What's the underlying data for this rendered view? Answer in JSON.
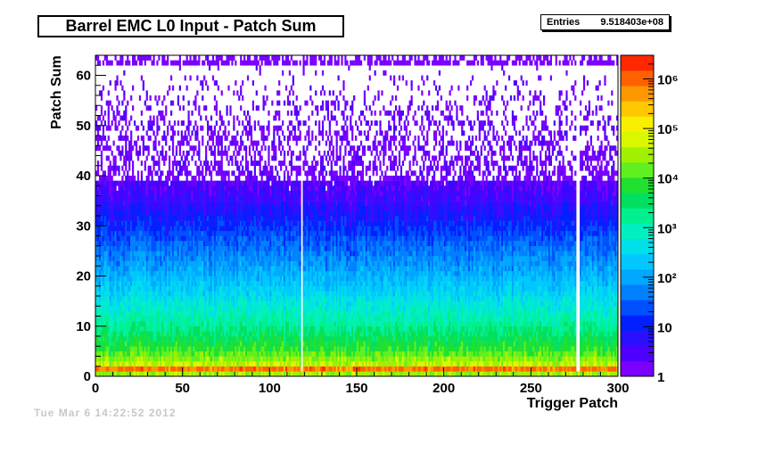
{
  "chart_data": {
    "type": "heatmap",
    "title": "Barrel EMC L0 Input - Patch Sum",
    "xlabel": "Trigger Patch",
    "ylabel": "Patch Sum",
    "xlim": [
      0,
      300
    ],
    "ylim": [
      0,
      64
    ],
    "x_ticks": [
      "0",
      "50",
      "100",
      "150",
      "200",
      "250",
      "300"
    ],
    "y_ticks": [
      "0",
      "10",
      "20",
      "30",
      "40",
      "50",
      "60"
    ],
    "x_bins": 300,
    "y_bins": 64,
    "z_scale": "log",
    "z_range": [
      1,
      3000000
    ],
    "z_ticks": [
      {
        "value": 1,
        "label": "1"
      },
      {
        "value": 10,
        "label": "10"
      },
      {
        "value": 100,
        "label": "10²"
      },
      {
        "value": 1000,
        "label": "10³"
      },
      {
        "value": 10000,
        "label": "10⁴"
      },
      {
        "value": 100000,
        "label": "10⁵"
      },
      {
        "value": 1000000,
        "label": "10⁶"
      }
    ],
    "stats": {
      "label": "Entries",
      "value": "9.518403e+08"
    },
    "empty_columns": [
      118,
      276,
      277
    ],
    "hot_columns": [
      118,
      148
    ],
    "density_profile": [
      {
        "y": 0,
        "count": 30000
      },
      {
        "y": 1,
        "count": 800000
      },
      {
        "y": 2,
        "count": 40000
      },
      {
        "y": 5,
        "count": 8000
      },
      {
        "y": 10,
        "count": 1500
      },
      {
        "y": 15,
        "count": 400
      },
      {
        "y": 20,
        "count": 120
      },
      {
        "y": 25,
        "count": 40
      },
      {
        "y": 30,
        "count": 12
      },
      {
        "y": 35,
        "count": 4
      },
      {
        "y": 40,
        "count": 1.8
      },
      {
        "y": 45,
        "count": 1.1
      },
      {
        "y": 62,
        "count": 1.0
      }
    ],
    "palette": [
      "#7a00ff",
      "#4d00ff",
      "#2a10ff",
      "#0020ff",
      "#0050ff",
      "#0080ff",
      "#00a8ff",
      "#00c8ff",
      "#00e0e8",
      "#00f0c0",
      "#00f090",
      "#00e060",
      "#20e030",
      "#60f020",
      "#a0f000",
      "#d8f800",
      "#f8f000",
      "#ffc800",
      "#ff9800",
      "#ff6000",
      "#ff2800"
    ]
  },
  "footer": {
    "text": "Tue Mar  6 14:22:52 2012"
  }
}
